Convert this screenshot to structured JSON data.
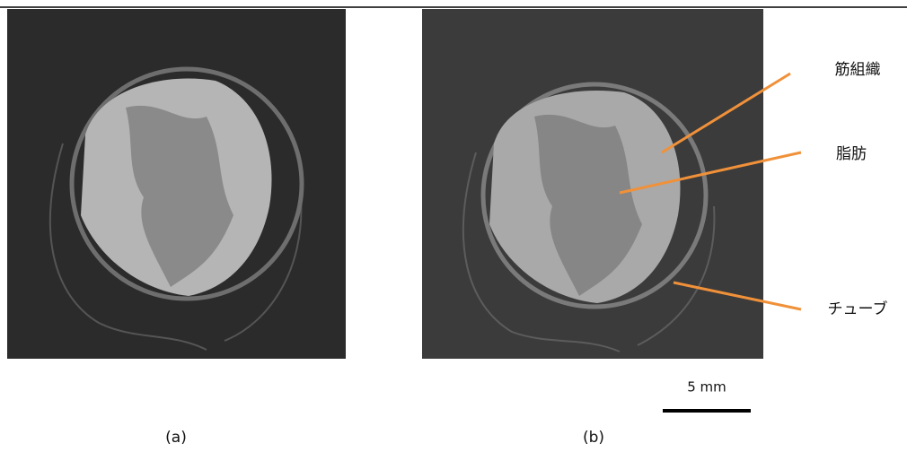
{
  "panels": [
    {
      "label": "(a)"
    },
    {
      "label": "(b)"
    }
  ],
  "annotations": [
    {
      "label": "筋組織"
    },
    {
      "label": "脂肪"
    },
    {
      "label": "チューブ"
    }
  ],
  "scale_bar": {
    "label": "5 mm"
  }
}
